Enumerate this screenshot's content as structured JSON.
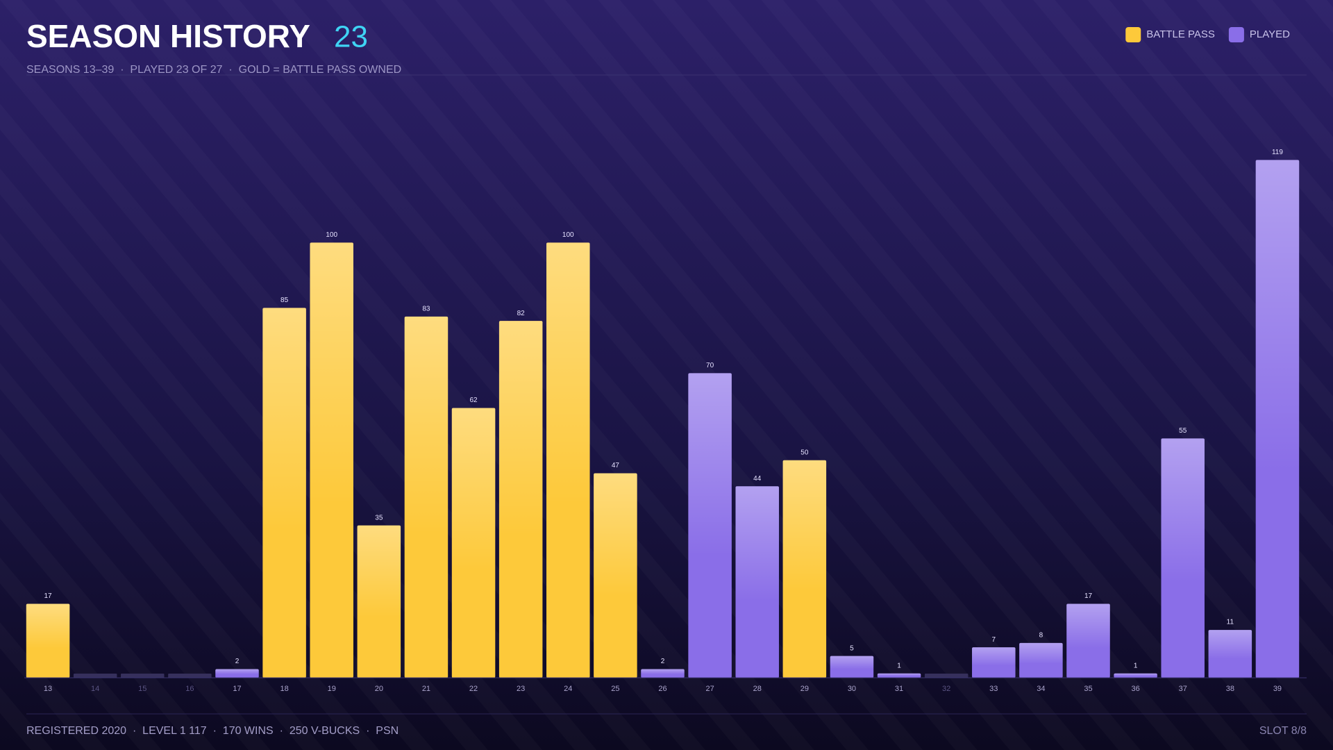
{
  "header": {
    "title": "SEASON HISTORY",
    "count": "23",
    "subtitle": "SEASONS 13–39  ·  PLAYED 23 OF 27  ·  GOLD = BATTLE PASS OWNED"
  },
  "chart_data": {
    "type": "bar",
    "categories": [
      "13",
      "14",
      "15",
      "16",
      "17",
      "18",
      "19",
      "20",
      "21",
      "22",
      "23",
      "24",
      "25",
      "26",
      "27",
      "28",
      "29",
      "30",
      "31",
      "32",
      "33",
      "34",
      "35",
      "36",
      "37",
      "38",
      "39"
    ],
    "series": [
      {
        "name": "BATTLE PASS",
        "color": "#fdc93a",
        "values": [
          17,
          null,
          null,
          null,
          null,
          85,
          100,
          35,
          83,
          62,
          82,
          100,
          47,
          null,
          null,
          null,
          50,
          null,
          null,
          null,
          null,
          null,
          null,
          null,
          null,
          null,
          null
        ]
      },
      {
        "name": "PLAYED",
        "color": "#8a6ee8",
        "values": [
          null,
          null,
          null,
          null,
          2,
          null,
          null,
          null,
          null,
          null,
          null,
          null,
          null,
          2,
          70,
          44,
          null,
          5,
          1,
          null,
          7,
          8,
          17,
          1,
          55,
          11,
          119
        ]
      }
    ],
    "ylim": [
      0,
      124
    ],
    "legend": "top-right"
  },
  "footer": {
    "stats": "REGISTERED 2020  ·  LEVEL 1 117  ·  170 WINS  ·  250 V-BUCKS  ·  PSN",
    "slot": "SLOT 8/8"
  }
}
